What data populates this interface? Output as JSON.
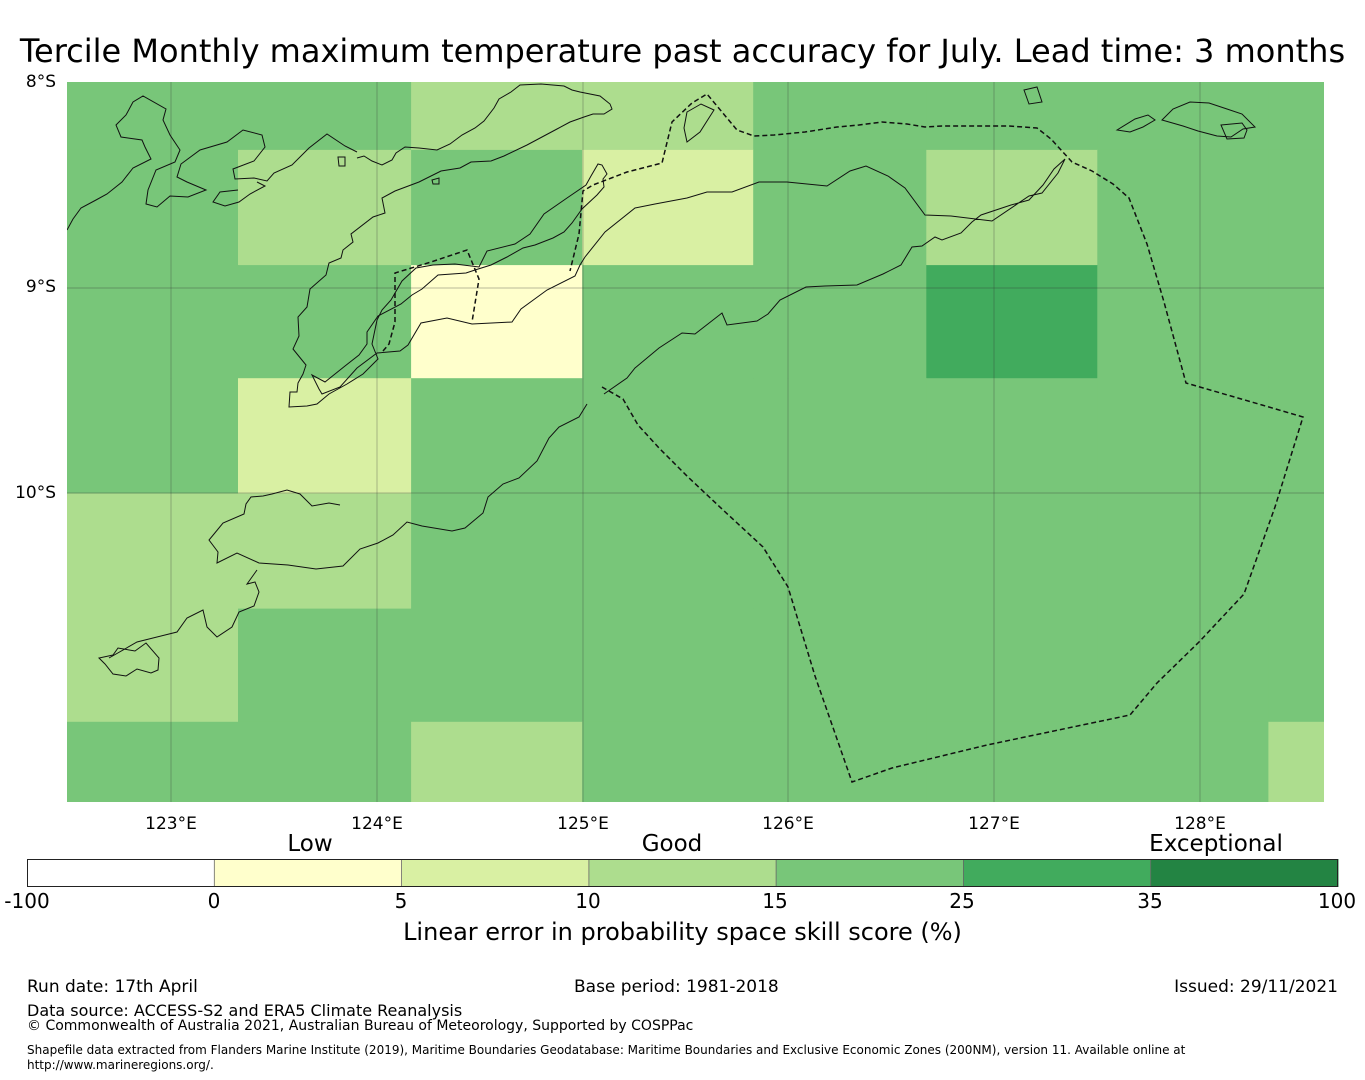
{
  "title": "Tercile Monthly maximum temperature past accuracy for July. Lead time: 3 months",
  "axes": {
    "lat_labels": [
      "8°S",
      "9°S",
      "10°S"
    ],
    "lon_labels": [
      "123°E",
      "124°E",
      "125°E",
      "126°E",
      "127°E",
      "128°E"
    ],
    "lon_range": [
      122.5,
      128.6
    ],
    "lat_range": [
      -11.5,
      -8.0
    ],
    "gridlines": true
  },
  "colorbar": {
    "categories": [
      "Low",
      "Good",
      "Exceptional"
    ],
    "ticks": [
      "-100",
      "0",
      "5",
      "10",
      "15",
      "25",
      "35",
      "100"
    ],
    "bins": [
      {
        "from": -100,
        "to": 0,
        "color": "#ffffff"
      },
      {
        "from": 0,
        "to": 5,
        "color": "#ffffcc"
      },
      {
        "from": 5,
        "to": 10,
        "color": "#d9f0a3"
      },
      {
        "from": 10,
        "to": 15,
        "color": "#addd8e"
      },
      {
        "from": 15,
        "to": 25,
        "color": "#78c679"
      },
      {
        "from": 25,
        "to": 35,
        "color": "#41ab5d"
      },
      {
        "from": 35,
        "to": 100,
        "color": "#238443"
      }
    ],
    "label": "Linear error in probability space skill score (%)"
  },
  "skill_grid": {
    "description_units": "grid cell boundaries in degrees; class = colorbar bin index",
    "lon_edges": [
      122.5,
      123.33,
      124.17,
      125.0,
      125.83,
      126.67,
      127.5,
      128.33,
      128.6
    ],
    "lat_edges": [
      -8.0,
      -8.33,
      -8.89,
      -9.44,
      -10.0,
      -10.56,
      -11.11,
      -11.5
    ],
    "classes": [
      [
        4,
        4,
        3,
        3,
        4,
        4,
        4,
        4
      ],
      [
        4,
        3,
        4,
        2,
        4,
        3,
        4,
        4
      ],
      [
        4,
        4,
        1,
        4,
        4,
        5,
        4,
        4
      ],
      [
        4,
        2,
        4,
        4,
        4,
        4,
        4,
        4
      ],
      [
        3,
        3,
        4,
        4,
        4,
        4,
        4,
        4
      ],
      [
        3,
        4,
        4,
        4,
        4,
        4,
        4,
        4
      ],
      [
        4,
        4,
        3,
        4,
        4,
        4,
        4,
        3
      ]
    ]
  },
  "footer": {
    "run_date": "Run date: 17th April",
    "base_period": "Base period: 1981-2018",
    "issued": "Issued: 29/11/2021",
    "data_source": "Data source: ACCESS-S2 and ERA5 Climate Reanalysis",
    "copyright": "© Commonwealth of Australia 2021, Australian Bureau of Meteorology, Supported by COSPPac",
    "shapefile_line1": "Shapefile data extracted from Flanders Marine Institute (2019), Maritime Boundaries Geodatabase: Maritime Boundaries and Exclusive Economic Zones (200NM), version 11. Available online at",
    "shapefile_line2": "http://www.marineregions.org/."
  }
}
